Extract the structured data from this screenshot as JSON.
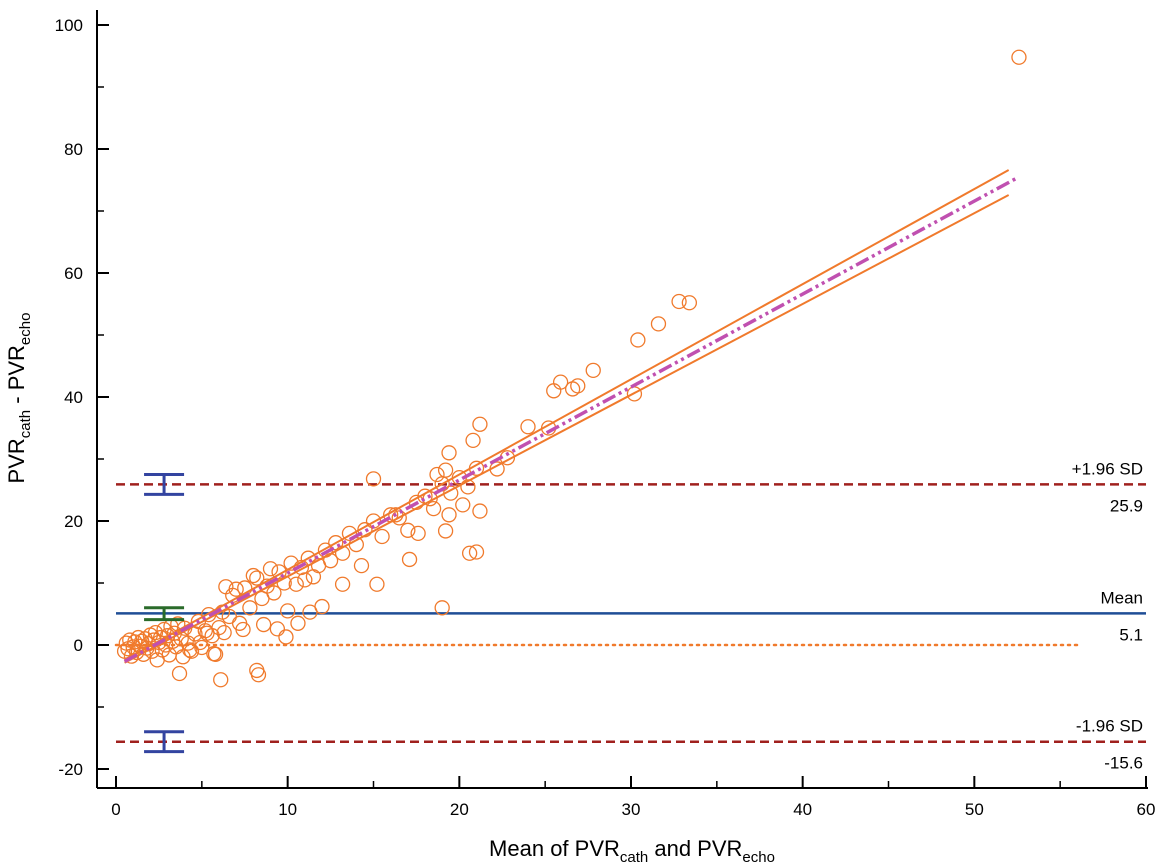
{
  "chart_data": {
    "type": "scatter",
    "title": "",
    "xlabel": {
      "base1": "Mean of PVR",
      "sub1": "cath",
      "mid": " and PVR",
      "sub2": "echo"
    },
    "ylabel": {
      "base1": "PVR",
      "sub1": "cath",
      "mid": " - PVR",
      "sub2": "echo"
    },
    "xlim": [
      0,
      60
    ],
    "ylim": [
      -22,
      102
    ],
    "xticks": [
      0,
      10,
      20,
      30,
      40,
      50,
      60
    ],
    "yticks": [
      -20,
      0,
      20,
      40,
      60,
      80,
      100
    ],
    "reference_lines": [
      {
        "id": "upper",
        "name": "+1.96 SD",
        "value": 25.9,
        "value_label": "25.9",
        "color": "#a0201e",
        "style": "dashed"
      },
      {
        "id": "mean",
        "name": "Mean",
        "value": 5.1,
        "value_label": "5.1",
        "color": "#1f4e96",
        "style": "solid"
      },
      {
        "id": "lower",
        "name": "-1.96 SD",
        "value": -15.6,
        "value_label": "-15.6",
        "color": "#a0201e",
        "style": "dashed"
      }
    ],
    "zero_line": {
      "value": 0,
      "x_range": [
        0,
        56
      ],
      "color": "#f07a2c",
      "style": "dotted"
    },
    "confidence_intervals": [
      {
        "x": 2.8,
        "center": 25.9,
        "low": 24.3,
        "high": 27.5,
        "color": "#3344a0"
      },
      {
        "x": 2.8,
        "center": 5.1,
        "low": 4.1,
        "high": 6.0,
        "color": "#2a6b2a"
      },
      {
        "x": 2.8,
        "center": -15.6,
        "low": -17.2,
        "high": -14.0,
        "color": "#3344a0"
      }
    ],
    "regression": {
      "x_range": [
        0.5,
        52.5
      ],
      "intercept": -3.4,
      "slope": 1.5,
      "color": "#c050b0",
      "style": "dash-dot"
    },
    "regression_ci": {
      "x_range": [
        0.5,
        52
      ],
      "upper": {
        "intercept": -3.2,
        "slope": 1.535
      },
      "lower": {
        "intercept": -3.6,
        "slope": 1.465
      },
      "color": "#f07a2c"
    },
    "point_color": "#f07a2c",
    "points": [
      [
        0.5,
        -1
      ],
      [
        0.6,
        0.3
      ],
      [
        0.7,
        -0.6
      ],
      [
        0.8,
        0.8
      ],
      [
        0.9,
        -1.8
      ],
      [
        1.0,
        -0.3
      ],
      [
        1.1,
        0.5
      ],
      [
        1.2,
        -1.2
      ],
      [
        1.3,
        1.2
      ],
      [
        1.4,
        -0.2
      ],
      [
        1.5,
        0.6
      ],
      [
        1.6,
        -1.5
      ],
      [
        1.7,
        1.0
      ],
      [
        1.8,
        -0.5
      ],
      [
        1.9,
        0.2
      ],
      [
        2.0,
        1.6
      ],
      [
        2.1,
        -1.0
      ],
      [
        2.2,
        0.8
      ],
      [
        2.3,
        2.0
      ],
      [
        2.4,
        -2.4
      ],
      [
        2.5,
        0.4
      ],
      [
        2.6,
        1.2
      ],
      [
        2.7,
        -0.8
      ],
      [
        2.8,
        2.5
      ],
      [
        2.9,
        0.0
      ],
      [
        3.0,
        1.5
      ],
      [
        3.1,
        -1.6
      ],
      [
        3.2,
        3.0
      ],
      [
        3.3,
        0.6
      ],
      [
        3.4,
        1.9
      ],
      [
        3.5,
        -0.3
      ],
      [
        3.6,
        3.4
      ],
      [
        3.7,
        -4.6
      ],
      [
        3.8,
        1.0
      ],
      [
        3.9,
        -1.9
      ],
      [
        4.0,
        2.7
      ],
      [
        4.2,
        0.3
      ],
      [
        4.4,
        -1.0
      ],
      [
        4.6,
        1.8
      ],
      [
        4.8,
        3.8
      ],
      [
        5.0,
        -0.4
      ],
      [
        5.2,
        2.3
      ],
      [
        5.4,
        4.9
      ],
      [
        5.6,
        1.5
      ],
      [
        5.8,
        -1.5
      ],
      [
        6.0,
        2.8
      ],
      [
        6.2,
        5.3
      ],
      [
        6.4,
        9.4
      ],
      [
        6.6,
        4.6
      ],
      [
        6.8,
        8.0
      ],
      [
        7.0,
        9.0
      ],
      [
        7.2,
        3.5
      ],
      [
        7.5,
        9.2
      ],
      [
        7.8,
        6.0
      ],
      [
        8.0,
        11.2
      ],
      [
        8.2,
        10.8
      ],
      [
        8.5,
        7.5
      ],
      [
        8.8,
        9.5
      ],
      [
        9.0,
        12.3
      ],
      [
        9.2,
        8.4
      ],
      [
        9.5,
        11.8
      ],
      [
        9.8,
        10.0
      ],
      [
        10.0,
        5.5
      ],
      [
        10.2,
        13.2
      ],
      [
        10.5,
        9.8
      ],
      [
        10.8,
        12.5
      ],
      [
        11.0,
        10.5
      ],
      [
        11.2,
        14.0
      ],
      [
        11.5,
        11.0
      ],
      [
        11.8,
        12.8
      ],
      [
        12.2,
        15.3
      ],
      [
        12.5,
        13.6
      ],
      [
        12.8,
        16.5
      ],
      [
        13.2,
        14.8
      ],
      [
        13.6,
        18.0
      ],
      [
        14.0,
        16.2
      ],
      [
        14.5,
        18.6
      ],
      [
        15.0,
        20.0
      ],
      [
        15.5,
        17.5
      ],
      [
        16.0,
        21.0
      ],
      [
        16.5,
        20.5
      ],
      [
        17.0,
        18.5
      ],
      [
        17.5,
        23.0
      ],
      [
        18.0,
        24.0
      ],
      [
        18.5,
        22.0
      ],
      [
        19.0,
        26.0
      ],
      [
        19.5,
        24.5
      ],
      [
        20.0,
        27.0
      ],
      [
        20.5,
        25.5
      ],
      [
        21.0,
        28.5
      ],
      [
        6.1,
        -5.6
      ],
      [
        8.2,
        -4.1
      ],
      [
        8.3,
        -4.8
      ],
      [
        6.3,
        2.0
      ],
      [
        7.4,
        2.5
      ],
      [
        8.6,
        3.3
      ],
      [
        9.4,
        2.6
      ],
      [
        10.6,
        3.5
      ],
      [
        11.3,
        5.3
      ],
      [
        12.0,
        6.2
      ],
      [
        9.9,
        1.3
      ],
      [
        5.3,
        1.9
      ],
      [
        5.7,
        -1.4
      ],
      [
        4.3,
        -0.8
      ],
      [
        4.9,
        0.4
      ],
      [
        15.2,
        9.8
      ],
      [
        15.0,
        26.8
      ],
      [
        17.1,
        13.8
      ],
      [
        19.0,
        6.0
      ],
      [
        18.7,
        27.5
      ],
      [
        19.2,
        28.2
      ],
      [
        19.4,
        31.0
      ],
      [
        20.8,
        33.0
      ],
      [
        21.2,
        35.6
      ],
      [
        20.6,
        14.8
      ],
      [
        21.0,
        15.0
      ],
      [
        19.2,
        18.4
      ],
      [
        19.4,
        21.0
      ],
      [
        21.2,
        21.6
      ],
      [
        22.2,
        28.4
      ],
      [
        22.8,
        30.2
      ],
      [
        24.0,
        35.2
      ],
      [
        25.2,
        35.0
      ],
      [
        25.5,
        41.0
      ],
      [
        25.9,
        42.4
      ],
      [
        26.6,
        41.3
      ],
      [
        26.9,
        41.8
      ],
      [
        27.8,
        44.3
      ],
      [
        30.2,
        40.5
      ],
      [
        30.4,
        49.2
      ],
      [
        31.6,
        51.8
      ],
      [
        32.8,
        55.4
      ],
      [
        33.4,
        55.2
      ],
      [
        52.6,
        94.8
      ],
      [
        13.2,
        9.8
      ],
      [
        14.3,
        12.8
      ],
      [
        16.3,
        21.0
      ],
      [
        17.6,
        18.0
      ],
      [
        18.3,
        23.6
      ],
      [
        20.2,
        22.6
      ]
    ]
  }
}
